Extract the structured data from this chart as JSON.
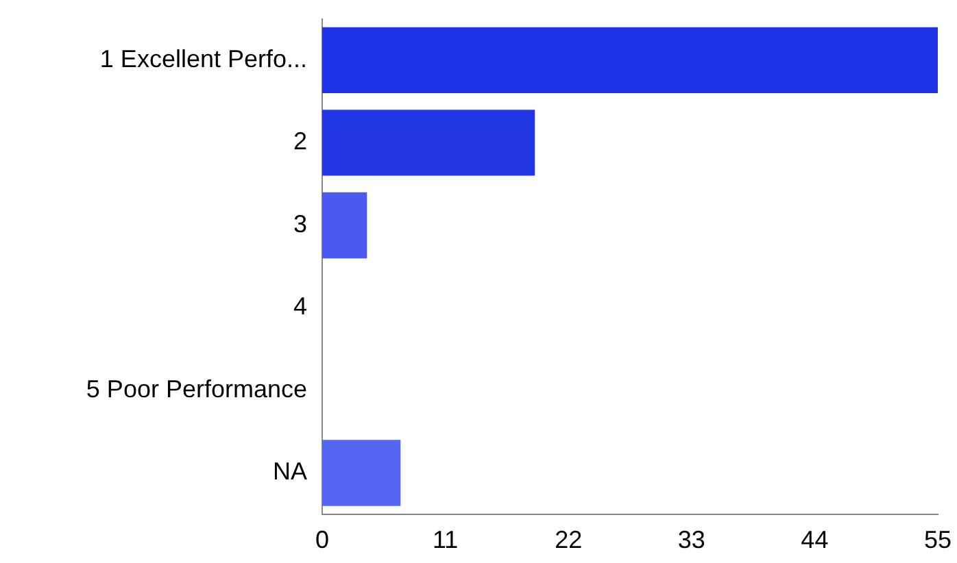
{
  "chart_data": {
    "type": "bar",
    "orientation": "horizontal",
    "categories": [
      "1 Excellent Perfo...",
      "2",
      "3",
      "4",
      "5 Poor Performance",
      "NA"
    ],
    "values": [
      55,
      19,
      4,
      0,
      0,
      7
    ],
    "colors": [
      "#1f33e6",
      "#2236e6",
      "#4a5af0",
      "#4a5af0",
      "#4a5af0",
      "#5566f2"
    ],
    "xlim": [
      0,
      55
    ],
    "xticks": [
      0,
      11,
      22,
      33,
      44,
      55
    ],
    "grid": false,
    "legend": false
  }
}
